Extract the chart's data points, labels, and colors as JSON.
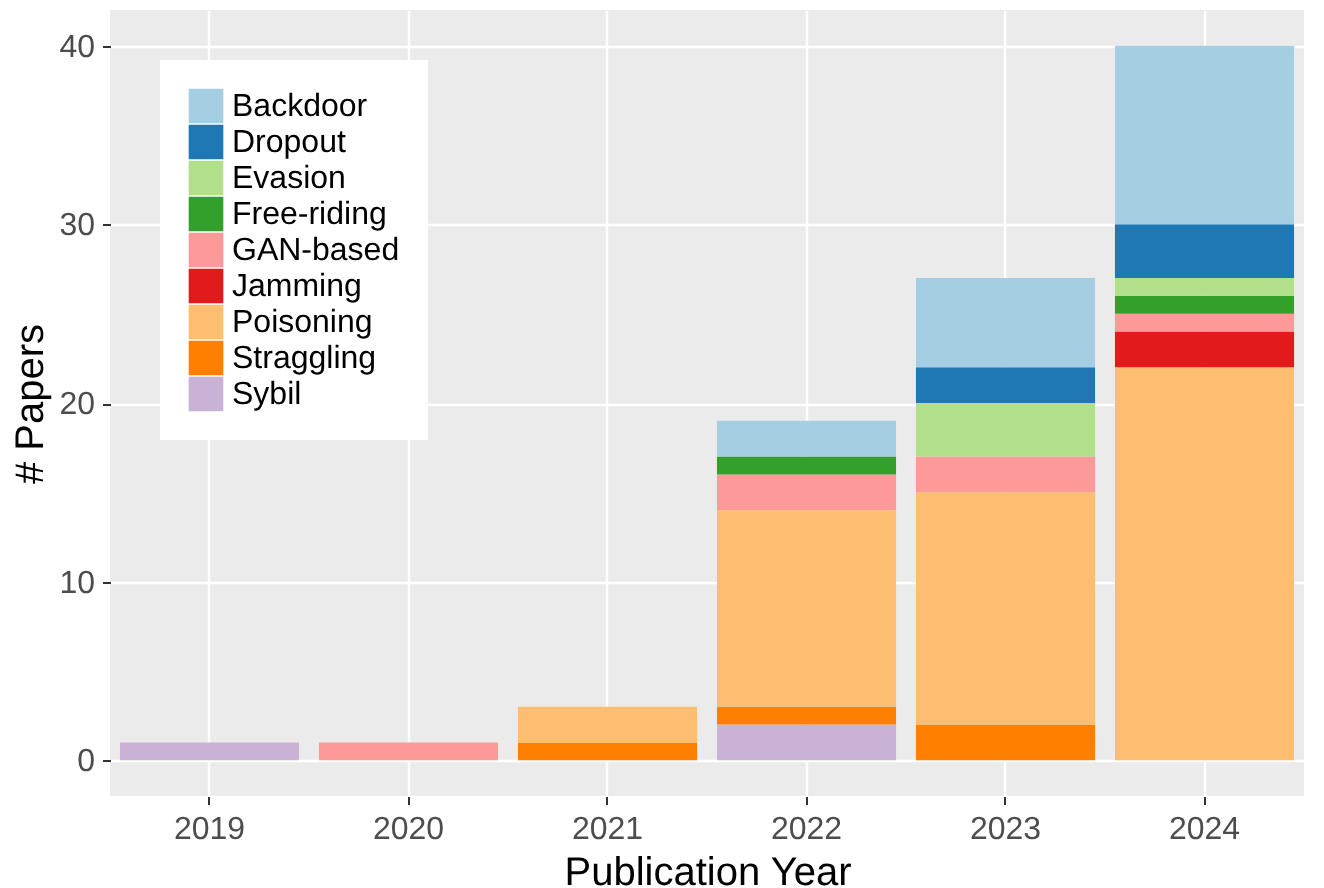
{
  "chart_data": {
    "type": "bar",
    "stacked": true,
    "xlabel": "Publication Year",
    "ylabel": "# Papers",
    "categories": [
      "2019",
      "2020",
      "2021",
      "2022",
      "2023",
      "2024"
    ],
    "series": [
      {
        "name": "Sybil",
        "color": "#cab2d6",
        "values": [
          1,
          0,
          0,
          2,
          0,
          0
        ]
      },
      {
        "name": "Straggling",
        "color": "#ff7f00",
        "values": [
          0,
          0,
          1,
          1,
          2,
          0
        ]
      },
      {
        "name": "Poisoning",
        "color": "#fdbf6f",
        "values": [
          0,
          0,
          2,
          11,
          13,
          22
        ]
      },
      {
        "name": "Jamming",
        "color": "#e31a1c",
        "values": [
          0,
          0,
          0,
          0,
          0,
          2
        ]
      },
      {
        "name": "GAN-based",
        "color": "#fb9a99",
        "values": [
          0,
          1,
          0,
          2,
          2,
          1
        ]
      },
      {
        "name": "Free-riding",
        "color": "#33a02c",
        "values": [
          0,
          0,
          0,
          1,
          0,
          1
        ]
      },
      {
        "name": "Evasion",
        "color": "#b2df8a",
        "values": [
          0,
          0,
          0,
          0,
          3,
          1
        ]
      },
      {
        "name": "Dropout",
        "color": "#1f78b4",
        "values": [
          0,
          0,
          0,
          0,
          2,
          3
        ]
      },
      {
        "name": "Backdoor",
        "color": "#a6cee3",
        "values": [
          0,
          0,
          0,
          2,
          5,
          10
        ]
      }
    ],
    "ylim": [
      -2,
      42
    ],
    "yticks": [
      0,
      10,
      20,
      30,
      40
    ],
    "grid": true,
    "legend": "top left"
  }
}
